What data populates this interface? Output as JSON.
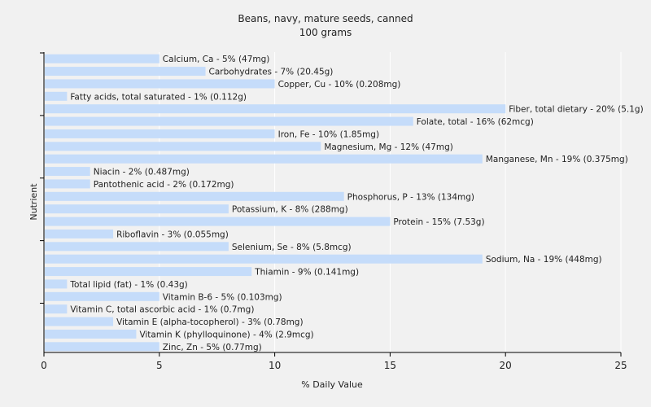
{
  "chart_data": {
    "type": "bar",
    "orientation": "horizontal",
    "title": "Beans, navy, mature seeds, canned",
    "subtitle": "100 grams",
    "xlabel": "% Daily Value",
    "ylabel": "Nutrient",
    "xlim": [
      0,
      25
    ],
    "xticks": [
      "0",
      "5",
      "10",
      "15",
      "20",
      "25"
    ],
    "grid": true,
    "colors": {
      "bar": "#c5dcfa",
      "background": "#f1f1f1",
      "grid": "#ffffff",
      "axis": "#000000"
    },
    "bars": [
      {
        "label": "Calcium, Ca - 5% (47mg)",
        "value": 5
      },
      {
        "label": "Carbohydrates - 7% (20.45g)",
        "value": 7
      },
      {
        "label": "Copper, Cu - 10% (0.208mg)",
        "value": 10
      },
      {
        "label": "Fatty acids, total saturated - 1% (0.112g)",
        "value": 1
      },
      {
        "label": "Fiber, total dietary - 20% (5.1g)",
        "value": 20
      },
      {
        "label": "Folate, total - 16% (62mcg)",
        "value": 16
      },
      {
        "label": "Iron, Fe - 10% (1.85mg)",
        "value": 10
      },
      {
        "label": "Magnesium, Mg - 12% (47mg)",
        "value": 12
      },
      {
        "label": "Manganese, Mn - 19% (0.375mg)",
        "value": 19
      },
      {
        "label": "Niacin - 2% (0.487mg)",
        "value": 2
      },
      {
        "label": "Pantothenic acid - 2% (0.172mg)",
        "value": 2
      },
      {
        "label": "Phosphorus, P - 13% (134mg)",
        "value": 13
      },
      {
        "label": "Potassium, K - 8% (288mg)",
        "value": 8
      },
      {
        "label": "Protein - 15% (7.53g)",
        "value": 15
      },
      {
        "label": "Riboflavin - 3% (0.055mg)",
        "value": 3
      },
      {
        "label": "Selenium, Se - 8% (5.8mcg)",
        "value": 8
      },
      {
        "label": "Sodium, Na - 19% (448mg)",
        "value": 19
      },
      {
        "label": "Thiamin - 9% (0.141mg)",
        "value": 9
      },
      {
        "label": "Total lipid (fat) - 1% (0.43g)",
        "value": 1
      },
      {
        "label": "Vitamin B-6 - 5% (0.103mg)",
        "value": 5
      },
      {
        "label": "Vitamin C, total ascorbic acid - 1% (0.7mg)",
        "value": 1
      },
      {
        "label": "Vitamin E (alpha-tocopherol) - 3% (0.78mg)",
        "value": 3
      },
      {
        "label": "Vitamin K (phylloquinone) - 4% (2.9mcg)",
        "value": 4
      },
      {
        "label": "Zinc, Zn - 5% (0.77mg)",
        "value": 5
      }
    ]
  }
}
